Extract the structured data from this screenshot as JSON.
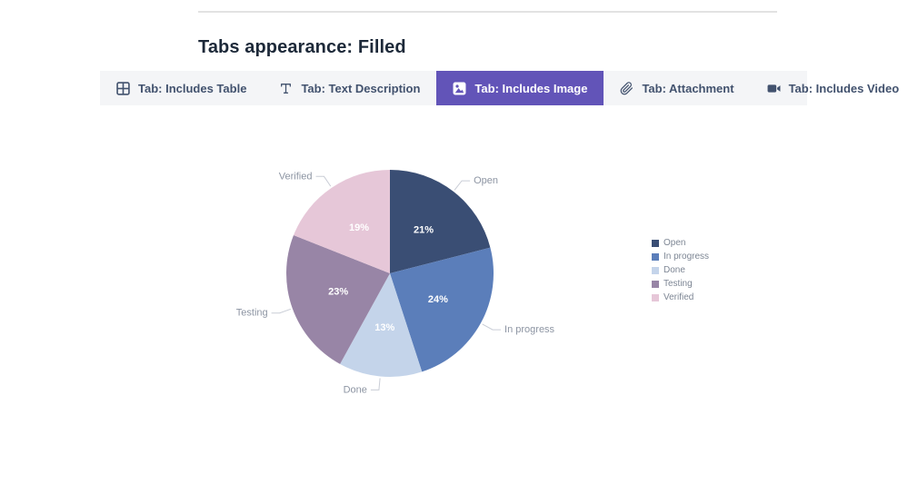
{
  "page": {
    "title": "Tabs appearance: Filled"
  },
  "tabs": [
    {
      "label": "Tab: Includes Table",
      "icon": "table-icon",
      "selected": false
    },
    {
      "label": "Tab: Text Description",
      "icon": "text-icon",
      "selected": false
    },
    {
      "label": "Tab: Includes Image",
      "icon": "image-icon",
      "selected": true
    },
    {
      "label": "Tab: Attachment",
      "icon": "attachment-icon",
      "selected": false
    },
    {
      "label": "Tab: Includes Video",
      "icon": "video-icon",
      "selected": false
    }
  ],
  "colors": {
    "accent": "#6254b8",
    "tab_bar_bg": "#f4f5f7",
    "tab_text": "#42526e",
    "outer_label_text": "#8d95a3",
    "legend_text": "#7d8694",
    "connector": "#c9cdd6"
  },
  "chart_data": {
    "type": "pie",
    "categories": [
      "Open",
      "In progress",
      "Done",
      "Testing",
      "Verified"
    ],
    "values": [
      21,
      24,
      13,
      23,
      19
    ],
    "labels": [
      "21%",
      "24%",
      "13%",
      "23%",
      "19%"
    ],
    "colors": [
      "#3a4e74",
      "#5b7eba",
      "#c4d4ea",
      "#9885a6",
      "#e6c7d8"
    ],
    "title": "",
    "legend_position": "right",
    "start_angle_deg": 0,
    "direction": "clockwise"
  }
}
